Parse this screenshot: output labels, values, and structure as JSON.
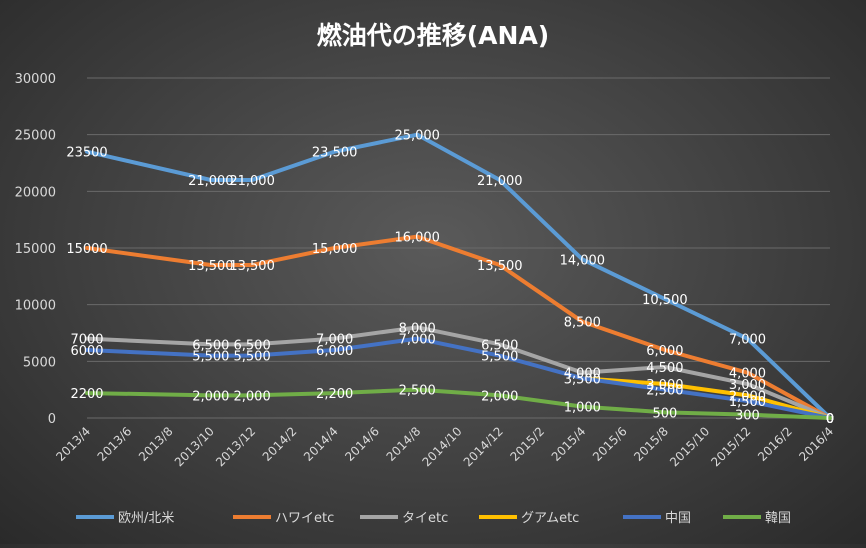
{
  "chart_data": {
    "type": "line",
    "title": "燃油代の推移(ANA)",
    "xlabel": "",
    "ylabel": "",
    "ylim": [
      0,
      30000
    ],
    "yticks": [
      "0",
      "5000",
      "10000",
      "15000",
      "20000",
      "25000",
      "30000"
    ],
    "categories": [
      "2013/4",
      "2013/6",
      "2013/8",
      "2013/10",
      "2013/12",
      "2014/2",
      "2014/4",
      "2014/6",
      "2014/8",
      "2014/10",
      "2014/12",
      "2015/2",
      "2015/4",
      "2015/6",
      "2015/8",
      "2015/10",
      "2015/12",
      "2016/2",
      "2016/4"
    ],
    "grid": "horizontal",
    "legend": "bottom",
    "series": [
      {
        "name": "欧州/北米",
        "color": "#5b9bd5",
        "x": [
          "2013/4",
          "2013/10",
          "2013/12",
          "2014/4",
          "2014/8",
          "2014/12",
          "2015/4",
          "2015/8",
          "2015/12",
          "2016/4"
        ],
        "values": [
          23500,
          21000,
          21000,
          23500,
          25000,
          21000,
          14000,
          10500,
          7000,
          0
        ],
        "labels": [
          "23500",
          "21,000",
          "21,000",
          "23,500",
          "25,000",
          "21,000",
          "14,000",
          "10,500",
          "7,000",
          "0"
        ]
      },
      {
        "name": "ハワイetc",
        "color": "#ed7d31",
        "x": [
          "2013/4",
          "2013/10",
          "2013/12",
          "2014/4",
          "2014/8",
          "2014/12",
          "2015/4",
          "2015/8",
          "2015/12",
          "2016/4"
        ],
        "values": [
          15000,
          13500,
          13500,
          15000,
          16000,
          13500,
          8500,
          6000,
          4000,
          0
        ],
        "labels": [
          "15000",
          "13,500",
          "13,500",
          "15,000",
          "16,000",
          "13,500",
          "8,500",
          "6,000",
          "4,000",
          "0"
        ]
      },
      {
        "name": "タイetc",
        "color": "#a5a5a5",
        "x": [
          "2013/4",
          "2013/10",
          "2013/12",
          "2014/4",
          "2014/8",
          "2014/12",
          "2015/4",
          "2015/8",
          "2015/12",
          "2016/4"
        ],
        "values": [
          7000,
          6500,
          6500,
          7000,
          8000,
          6500,
          4000,
          4500,
          3000,
          0
        ],
        "labels": [
          "7000",
          "6,500",
          "6,500",
          "7,000",
          "8,000",
          "6,500",
          "4,000",
          "4,500",
          "3,000",
          "0"
        ]
      },
      {
        "name": "グアムetc",
        "color": "#ffc000",
        "x": [
          "2015/4",
          "2015/8",
          "2015/12",
          "2016/4"
        ],
        "values": [
          3500,
          3000,
          2000,
          0
        ],
        "labels": [
          "",
          "3,000",
          "2,000",
          "0"
        ]
      },
      {
        "name": "中国",
        "color": "#4472c4",
        "x": [
          "2013/4",
          "2013/10",
          "2013/12",
          "2014/4",
          "2014/8",
          "2014/12",
          "2015/4",
          "2015/8",
          "2015/12",
          "2016/4"
        ],
        "values": [
          6000,
          5500,
          5500,
          6000,
          7000,
          5500,
          3500,
          2500,
          1500,
          0
        ],
        "labels": [
          "6000",
          "5,500",
          "5,500",
          "6,000",
          "7,000",
          "5,500",
          "3,500",
          "2,500",
          "1,500",
          "0"
        ]
      },
      {
        "name": "韓国",
        "color": "#70ad47",
        "x": [
          "2013/4",
          "2013/10",
          "2013/12",
          "2014/4",
          "2014/8",
          "2014/12",
          "2015/4",
          "2015/8",
          "2015/12",
          "2016/4"
        ],
        "values": [
          2200,
          2000,
          2000,
          2200,
          2500,
          2000,
          1000,
          500,
          300,
          0
        ],
        "labels": [
          "2200",
          "2,000",
          "2,000",
          "2,200",
          "2,500",
          "2,000",
          "1,000",
          "500",
          "300",
          "0"
        ]
      }
    ]
  }
}
